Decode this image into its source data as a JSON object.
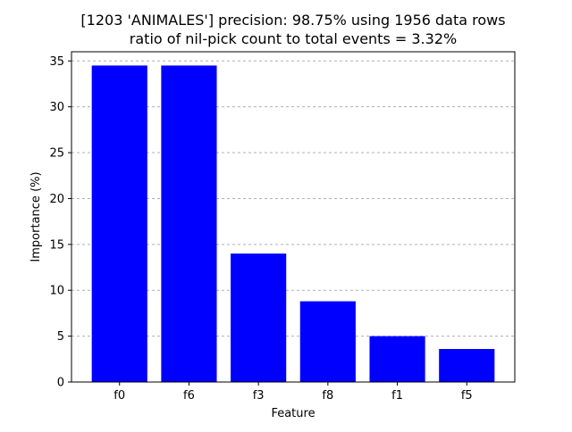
{
  "chart_data": {
    "type": "bar",
    "title": "[1203 'ANIMALES'] precision: 98.75% using 1956 data rows",
    "subtitle": "ratio of nil-pick count to total events = 3.32%",
    "xlabel": "Feature",
    "ylabel": "Importance (%)",
    "categories": [
      "f0",
      "f6",
      "f3",
      "f8",
      "f1",
      "f5"
    ],
    "values": [
      34.5,
      34.5,
      14.0,
      8.8,
      5.0,
      3.6
    ],
    "ylim": [
      0,
      36
    ],
    "yticks": [
      "0",
      "5",
      "10",
      "15",
      "20",
      "25",
      "30",
      "35"
    ],
    "grid": "y dashed",
    "bar_color": "#0000ff",
    "grid_color": "#b0b0b0"
  }
}
